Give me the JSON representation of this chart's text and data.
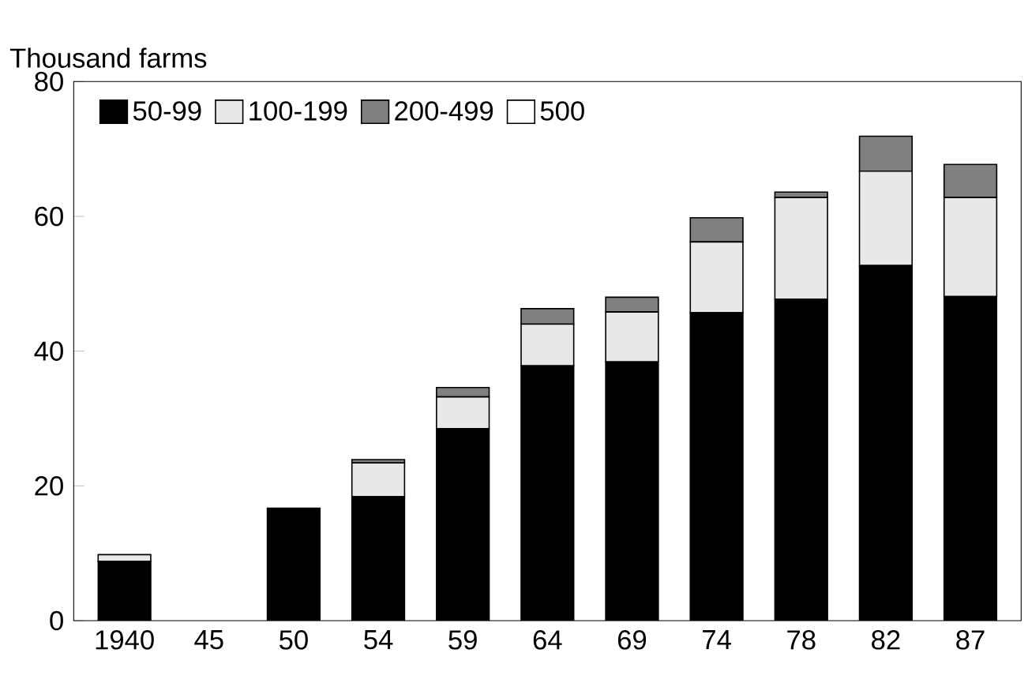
{
  "chart_data": {
    "type": "bar",
    "stacked": true,
    "ylabel": "Thousand farms",
    "categories": [
      "1940",
      "45",
      "50",
      "54",
      "59",
      "64",
      "69",
      "74",
      "78",
      "82",
      "87"
    ],
    "series": [
      {
        "name": "50-99",
        "color": "#000000",
        "values": [
          8.8,
          0,
          16.7,
          18.4,
          28.5,
          37.8,
          38.4,
          45.7,
          47.7,
          52.7,
          48.1
        ]
      },
      {
        "name": "100-199",
        "color": "#e8e8e8",
        "values": [
          1.0,
          0,
          0,
          5.0,
          4.7,
          6.2,
          7.4,
          10.5,
          15.1,
          14.0,
          14.7
        ]
      },
      {
        "name": "200-499",
        "color": "#808080",
        "values": [
          0,
          0,
          0,
          0.5,
          1.4,
          2.3,
          2.2,
          3.6,
          0.8,
          5.2,
          4.9
        ]
      },
      {
        "name": "500",
        "color": "#ffffff",
        "values": [
          0,
          0,
          0,
          0,
          0,
          0,
          0,
          0,
          0,
          0,
          0
        ]
      }
    ],
    "ylim": [
      0,
      80
    ],
    "yticks": [
      0,
      20,
      40,
      60,
      80
    ],
    "legend": "top left",
    "grid": false
  }
}
